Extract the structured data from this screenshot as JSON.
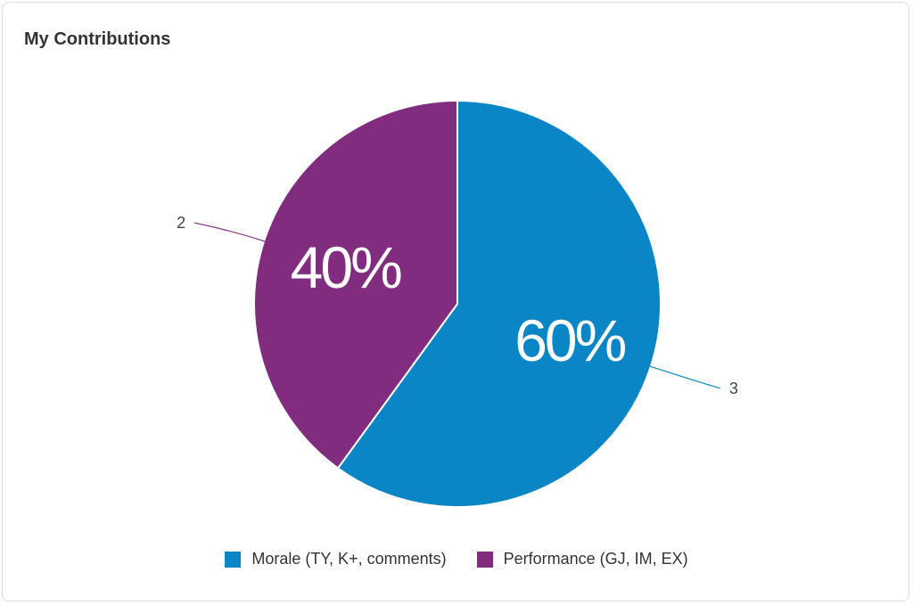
{
  "card": {
    "title": "My Contributions"
  },
  "chart_data": {
    "type": "pie",
    "title": "My Contributions",
    "slices": [
      {
        "name": "Morale (TY, K+, comments)",
        "value": 3,
        "percent_label": "60%",
        "color": "#0a86c7"
      },
      {
        "name": "Performance (GJ, IM, EX)",
        "value": 2,
        "percent_label": "40%",
        "color": "#812c7f"
      }
    ],
    "legend_position": "bottom"
  }
}
